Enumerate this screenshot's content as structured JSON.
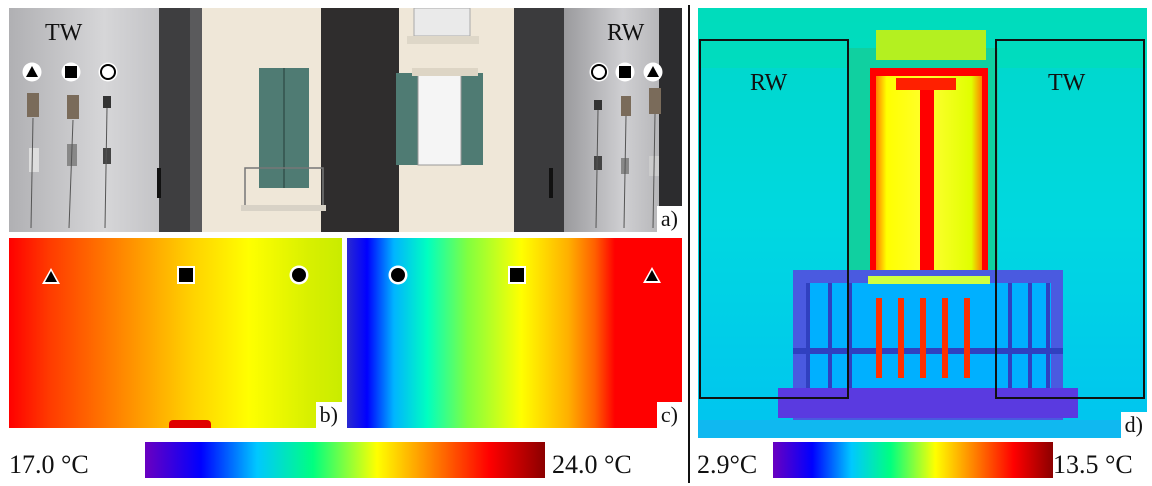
{
  "panel_a": {
    "label": "a)",
    "left_text": "TW",
    "right_text": "RW"
  },
  "panel_b": {
    "label": "b)"
  },
  "panel_c": {
    "label": "c)"
  },
  "panel_d": {
    "label": "d)",
    "box_left": "RW",
    "box_right": "TW"
  },
  "scale_left": {
    "min": "17.0 °C",
    "max": "24.0 °C"
  },
  "scale_right": {
    "min": "2.9°C",
    "max": "13.5 °C"
  },
  "markers": {
    "triangle": "triangle-marker",
    "square": "square-marker",
    "circle": "circle-marker"
  },
  "colors": {
    "ir_gradient": [
      "#6a00c0",
      "#0000ff",
      "#00c8ff",
      "#00ff80",
      "#ffff00",
      "#ff8000",
      "#ff0000",
      "#8b0000"
    ]
  }
}
